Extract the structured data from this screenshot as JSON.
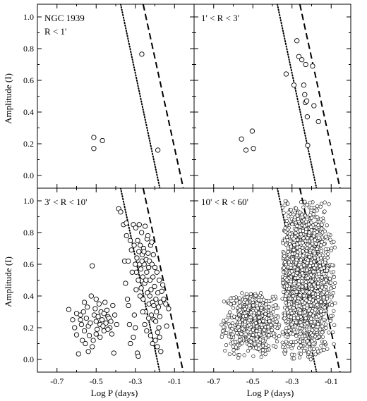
{
  "figure": {
    "ylabel": "Amplitude (I)",
    "xlabel": "Log P (days)",
    "x_ticks": [
      -0.7,
      -0.5,
      -0.3,
      -0.1
    ],
    "x_tick_labels": [
      "-0.7",
      "-0.5",
      "-0.3",
      "-0.1"
    ],
    "y_ticks": [
      0.0,
      0.2,
      0.4,
      0.6,
      0.8,
      1.0
    ],
    "y_tick_labels": [
      "0.0",
      "0.2",
      "0.4",
      "0.6",
      "0.8",
      "1.0"
    ]
  },
  "chart_data": [
    {
      "type": "scatter",
      "panel": "top-left",
      "label_lines": [
        "NGC 1939",
        "R < 1'"
      ],
      "xlim": [
        -0.8,
        0.0
      ],
      "ylim": [
        -0.08,
        1.08
      ],
      "dotted_line": [
        [
          -0.375,
          1.08
        ],
        [
          -0.175,
          -0.08
        ]
      ],
      "dashed_line": [
        [
          -0.26,
          1.08
        ],
        [
          -0.055,
          -0.08
        ]
      ],
      "points": [
        [
          -0.512,
          0.24
        ],
        [
          -0.512,
          0.17
        ],
        [
          -0.468,
          0.22
        ],
        [
          -0.267,
          0.765
        ],
        [
          -0.185,
          0.16
        ]
      ]
    },
    {
      "type": "scatter",
      "panel": "top-right",
      "label_lines": [
        "1' < R < 3'"
      ],
      "xlim": [
        -0.8,
        0.0
      ],
      "ylim": [
        -0.08,
        1.08
      ],
      "dotted_line": [
        [
          -0.375,
          1.08
        ],
        [
          -0.175,
          -0.08
        ]
      ],
      "dashed_line": [
        [
          -0.26,
          1.08
        ],
        [
          -0.055,
          -0.08
        ]
      ],
      "points": [
        [
          -0.558,
          0.23
        ],
        [
          -0.535,
          0.16
        ],
        [
          -0.503,
          0.28
        ],
        [
          -0.497,
          0.17
        ],
        [
          -0.33,
          0.64
        ],
        [
          -0.29,
          0.57
        ],
        [
          -0.275,
          0.85
        ],
        [
          -0.265,
          0.75
        ],
        [
          -0.25,
          0.73
        ],
        [
          -0.24,
          0.57
        ],
        [
          -0.235,
          0.51
        ],
        [
          -0.23,
          0.7
        ],
        [
          -0.232,
          0.46
        ],
        [
          -0.225,
          0.47
        ],
        [
          -0.222,
          0.37
        ],
        [
          -0.22,
          0.19
        ],
        [
          -0.195,
          0.69
        ],
        [
          -0.188,
          0.44
        ],
        [
          -0.165,
          0.34
        ]
      ]
    },
    {
      "type": "scatter",
      "panel": "bottom-left",
      "label_lines": [
        "3' < R < 10'"
      ],
      "xlim": [
        -0.8,
        0.0
      ],
      "ylim": [
        -0.08,
        1.08
      ],
      "dotted_line": [
        [
          -0.375,
          1.08
        ],
        [
          -0.175,
          -0.08
        ]
      ],
      "dashed_line": [
        [
          -0.26,
          1.08
        ],
        [
          -0.055,
          -0.08
        ]
      ],
      "points": [
        [
          -0.64,
          0.315
        ],
        [
          -0.61,
          0.2
        ],
        [
          -0.62,
          0.25
        ],
        [
          -0.6,
          0.155
        ],
        [
          -0.59,
          0.035
        ],
        [
          -0.58,
          0.28
        ],
        [
          -0.575,
          0.22
        ],
        [
          -0.57,
          0.12
        ],
        [
          -0.565,
          0.3
        ],
        [
          -0.56,
          0.18
        ],
        [
          -0.555,
          0.1
        ],
        [
          -0.55,
          0.26
        ],
        [
          -0.545,
          0.33
        ],
        [
          -0.54,
          0.21
        ],
        [
          -0.535,
          0.15
        ],
        [
          -0.53,
          0.23
        ],
        [
          -0.525,
          0.4
        ],
        [
          -0.52,
          0.59
        ],
        [
          -0.515,
          0.12
        ],
        [
          -0.51,
          0.28
        ],
        [
          -0.505,
          0.32
        ],
        [
          -0.5,
          0.24
        ],
        [
          -0.495,
          0.19
        ],
        [
          -0.49,
          0.27
        ],
        [
          -0.485,
          0.35
        ],
        [
          -0.48,
          0.22
        ],
        [
          -0.475,
          0.3
        ],
        [
          -0.47,
          0.25
        ],
        [
          -0.465,
          0.21
        ],
        [
          -0.46,
          0.29
        ],
        [
          -0.455,
          0.36
        ],
        [
          -0.45,
          0.23
        ],
        [
          -0.445,
          0.31
        ],
        [
          -0.44,
          0.27
        ],
        [
          -0.435,
          0.26
        ],
        [
          -0.43,
          0.2
        ],
        [
          -0.425,
          0.24
        ],
        [
          -0.42,
          0.16
        ],
        [
          -0.415,
          0.34
        ],
        [
          -0.41,
          0.04
        ],
        [
          -0.405,
          0.28
        ],
        [
          -0.395,
          0.22
        ],
        [
          -0.385,
          0.95
        ],
        [
          -0.375,
          0.93
        ],
        [
          -0.36,
          0.85
        ],
        [
          -0.355,
          0.62
        ],
        [
          -0.35,
          0.48
        ],
        [
          -0.345,
          0.78
        ],
        [
          -0.34,
          0.38
        ],
        [
          -0.335,
          0.34
        ],
        [
          -0.33,
          0.22
        ],
        [
          -0.325,
          0.1
        ],
        [
          -0.32,
          0.69
        ],
        [
          -0.31,
          0.85
        ],
        [
          -0.305,
          0.28
        ],
        [
          -0.3,
          0.6
        ],
        [
          -0.298,
          0.83
        ],
        [
          -0.295,
          0.55
        ],
        [
          -0.29,
          0.04
        ],
        [
          -0.288,
          0.75
        ],
        [
          -0.285,
          0.5
        ],
        [
          -0.282,
          0.68
        ],
        [
          -0.28,
          0.85
        ],
        [
          -0.278,
          0.6
        ],
        [
          -0.275,
          0.72
        ],
        [
          -0.272,
          0.57
        ],
        [
          -0.27,
          0.45
        ],
        [
          -0.268,
          0.8
        ],
        [
          -0.265,
          0.66
        ],
        [
          -0.262,
          0.52
        ],
        [
          -0.26,
          0.38
        ],
        [
          -0.258,
          0.7
        ],
        [
          -0.255,
          0.6
        ],
        [
          -0.252,
          0.48
        ],
        [
          -0.25,
          0.84
        ],
        [
          -0.248,
          0.3
        ],
        [
          -0.245,
          0.63
        ],
        [
          -0.242,
          0.55
        ],
        [
          -0.24,
          0.76
        ],
        [
          -0.238,
          0.42
        ],
        [
          -0.235,
          0.67
        ],
        [
          -0.232,
          0.58
        ],
        [
          -0.23,
          0.35
        ],
        [
          -0.228,
          0.62
        ],
        [
          -0.225,
          0.5
        ],
        [
          -0.222,
          0.72
        ],
        [
          -0.22,
          0.44
        ],
        [
          -0.218,
          0.28
        ],
        [
          -0.215,
          0.6
        ],
        [
          -0.212,
          0.36
        ],
        [
          -0.21,
          0.52
        ],
        [
          -0.208,
          0.66
        ],
        [
          -0.205,
          0.25
        ],
        [
          -0.202,
          0.46
        ],
        [
          -0.2,
          0.58
        ],
        [
          -0.198,
          0.12
        ],
        [
          -0.195,
          0.38
        ],
        [
          -0.192,
          0.3
        ],
        [
          -0.19,
          0.55
        ],
        [
          -0.188,
          0.08
        ],
        [
          -0.185,
          0.42
        ],
        [
          -0.182,
          0.33
        ],
        [
          -0.18,
          0.2
        ],
        [
          -0.178,
          0.5
        ],
        [
          -0.175,
          0.27
        ],
        [
          -0.172,
          0.36
        ],
        [
          -0.17,
          0.05
        ],
        [
          -0.165,
          0.43
        ],
        [
          -0.16,
          0.47
        ],
        [
          -0.155,
          0.38
        ],
        [
          -0.145,
          0.35
        ],
        [
          -0.14,
          0.21
        ],
        [
          -0.13,
          0.32
        ],
        [
          -0.3,
          0.2
        ],
        [
          -0.31,
          0.14
        ],
        [
          -0.285,
          0.02
        ],
        [
          -0.296,
          0.44
        ],
        [
          -0.276,
          0.4
        ],
        [
          -0.266,
          0.62
        ],
        [
          -0.256,
          0.68
        ],
        [
          -0.246,
          0.5
        ],
        [
          -0.236,
          0.78
        ],
        [
          -0.226,
          0.4
        ],
        [
          -0.216,
          0.74
        ],
        [
          -0.206,
          0.34
        ],
        [
          -0.196,
          0.24
        ],
        [
          -0.186,
          0.17
        ],
        [
          -0.176,
          0.14
        ],
        [
          -0.316,
          0.55
        ],
        [
          -0.326,
          0.75
        ],
        [
          -0.336,
          0.62
        ],
        [
          -0.346,
          0.86
        ],
        [
          -0.306,
          0.72
        ],
        [
          -0.292,
          0.64
        ],
        [
          -0.262,
          0.3
        ],
        [
          -0.252,
          0.22
        ],
        [
          -0.242,
          0.18
        ],
        [
          -0.232,
          0.26
        ],
        [
          -0.222,
          0.15
        ],
        [
          -0.212,
          0.1
        ],
        [
          -0.5,
          0.16
        ],
        [
          -0.52,
          0.08
        ],
        [
          -0.54,
          0.05
        ],
        [
          -0.48,
          0.14
        ],
        [
          -0.46,
          0.18
        ],
        [
          -0.58,
          0.25
        ],
        [
          -0.6,
          0.29
        ],
        [
          -0.56,
          0.36
        ],
        [
          -0.5,
          0.38
        ],
        [
          -0.44,
          0.19
        ]
      ]
    },
    {
      "type": "scatter",
      "panel": "bottom-right",
      "label_lines": [
        "10' < R < 60'"
      ],
      "xlim": [
        -0.8,
        0.0
      ],
      "ylim": [
        -0.08,
        1.08
      ],
      "dotted_line": [
        [
          -0.375,
          1.08
        ],
        [
          -0.175,
          -0.08
        ]
      ],
      "dashed_line": [
        [
          -0.26,
          1.08
        ],
        [
          -0.055,
          -0.08
        ]
      ],
      "point_clouds": [
        {
          "name": "",
          "count": 650,
          "x_range": [
            -0.66,
            -0.36
          ],
          "y_range": [
            0.0,
            0.42
          ],
          "x_center": -0.5,
          "y_center": 0.24
        },
        {
          "name": "",
          "count": 2100,
          "x_range": [
            -0.35,
            -0.08
          ],
          "y_range": [
            0.0,
            1.0
          ],
          "x_center": -0.24,
          "y_center": 0.5
        }
      ]
    }
  ]
}
